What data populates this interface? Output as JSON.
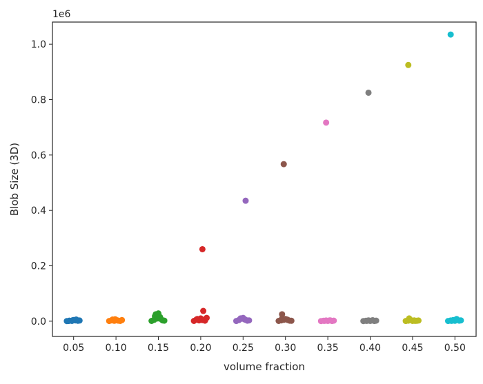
{
  "chart_data": {
    "type": "scatter",
    "xlabel": "volume fraction",
    "ylabel": "Blob Size (3D)",
    "y_offset_label": "1e6",
    "xlim": [
      0.025,
      0.525
    ],
    "ylim": [
      -55000,
      1080000
    ],
    "x_ticks": [
      0.05,
      0.1,
      0.15,
      0.2,
      0.25,
      0.3,
      0.35,
      0.4,
      0.45,
      0.5
    ],
    "x_tick_labels": [
      "0.05",
      "0.10",
      "0.15",
      "0.20",
      "0.25",
      "0.30",
      "0.35",
      "0.40",
      "0.45",
      "0.50"
    ],
    "y_ticks": [
      0,
      200000,
      400000,
      600000,
      800000,
      1000000
    ],
    "y_tick_labels": [
      "0.0",
      "0.2",
      "0.4",
      "0.6",
      "0.8",
      "1.0"
    ],
    "grid": false,
    "legend": "none",
    "series": [
      {
        "color": "#1f77b4",
        "x": [
          0.042,
          0.045,
          0.048,
          0.05,
          0.052,
          0.055,
          0.057,
          0.044,
          0.053,
          0.049
        ],
        "y": [
          500,
          2000,
          1000,
          4000,
          3000,
          1500,
          2500,
          800,
          6000,
          3500
        ]
      },
      {
        "color": "#ff7f0e",
        "x": [
          0.092,
          0.095,
          0.098,
          0.1,
          0.102,
          0.105,
          0.107,
          0.096,
          0.103,
          0.099
        ],
        "y": [
          800,
          3000,
          1500,
          5000,
          2500,
          1000,
          4000,
          6000,
          2000,
          7000
        ]
      },
      {
        "color": "#2ca02c",
        "x": [
          0.142,
          0.145,
          0.148,
          0.15,
          0.152,
          0.155,
          0.157,
          0.147,
          0.153,
          0.15,
          0.149,
          0.146
        ],
        "y": [
          1000,
          5000,
          12000,
          20000,
          15000,
          3000,
          2000,
          25000,
          8000,
          28000,
          10000,
          18000
        ]
      },
      {
        "color": "#d62728",
        "x": [
          0.192,
          0.195,
          0.198,
          0.2,
          0.202,
          0.205,
          0.207,
          0.196,
          0.204,
          0.203,
          0.202
        ],
        "y": [
          1000,
          6000,
          3000,
          10000,
          4000,
          2000,
          12000,
          8000,
          5000,
          37000,
          260000
        ]
      },
      {
        "color": "#9467bd",
        "x": [
          0.242,
          0.245,
          0.248,
          0.25,
          0.252,
          0.255,
          0.257,
          0.247,
          0.253,
          0.253
        ],
        "y": [
          800,
          4000,
          9000,
          12000,
          6000,
          2000,
          3000,
          10000,
          5000,
          435000
        ]
      },
      {
        "color": "#8c564b",
        "x": [
          0.292,
          0.295,
          0.298,
          0.3,
          0.302,
          0.305,
          0.307,
          0.296,
          0.303,
          0.296,
          0.298
        ],
        "y": [
          1000,
          3000,
          5000,
          8000,
          6000,
          2000,
          1500,
          10000,
          4000,
          25000,
          567000
        ]
      },
      {
        "color": "#e377c2",
        "x": [
          0.342,
          0.345,
          0.348,
          0.35,
          0.352,
          0.355,
          0.357,
          0.346,
          0.353,
          0.348
        ],
        "y": [
          500,
          1500,
          2500,
          1000,
          3000,
          800,
          2000,
          1200,
          2800,
          717000
        ]
      },
      {
        "color": "#7f7f7f",
        "x": [
          0.392,
          0.395,
          0.398,
          0.4,
          0.402,
          0.405,
          0.407,
          0.396,
          0.403,
          0.398
        ],
        "y": [
          500,
          1500,
          3000,
          1000,
          2500,
          800,
          2000,
          1200,
          3500,
          825000
        ]
      },
      {
        "color": "#bcbd22",
        "x": [
          0.442,
          0.445,
          0.448,
          0.45,
          0.452,
          0.455,
          0.457,
          0.446,
          0.453,
          0.445
        ],
        "y": [
          800,
          2000,
          4000,
          1000,
          3000,
          1500,
          2500,
          10000,
          1200,
          925000
        ]
      },
      {
        "color": "#17becf",
        "x": [
          0.492,
          0.495,
          0.498,
          0.5,
          0.502,
          0.505,
          0.507,
          0.496,
          0.503,
          0.495
        ],
        "y": [
          800,
          2500,
          4000,
          1500,
          8000,
          2000,
          3000,
          1200,
          5000,
          1035000
        ]
      }
    ]
  }
}
